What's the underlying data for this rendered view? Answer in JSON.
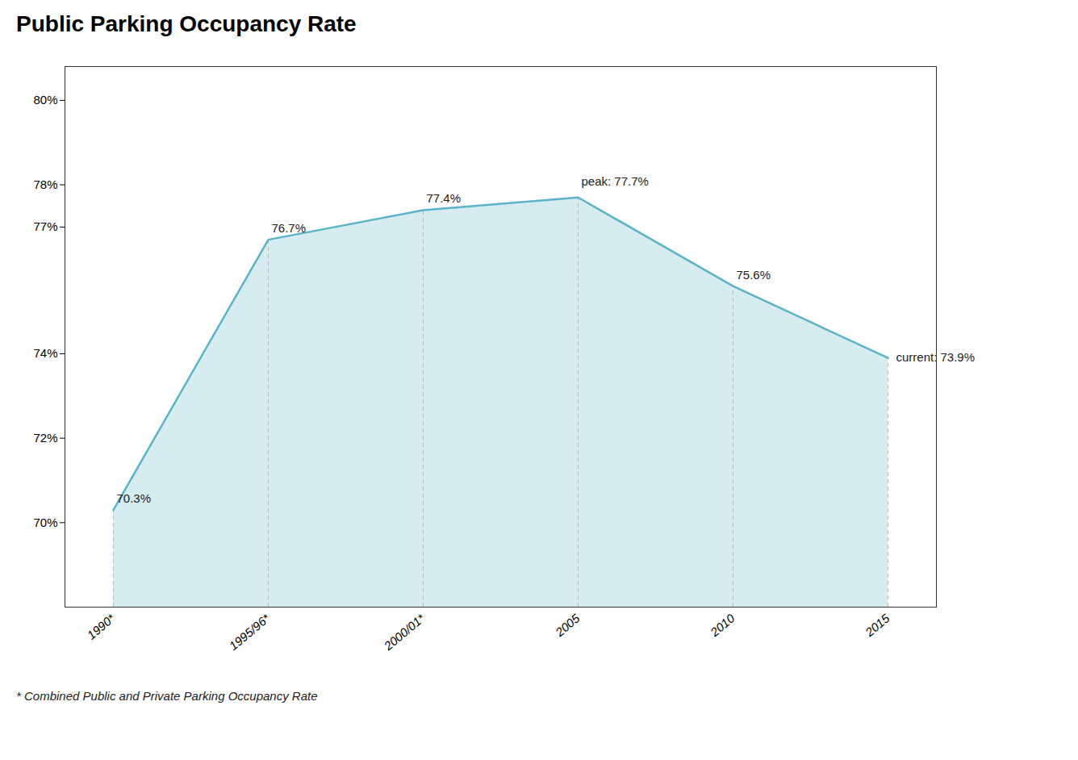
{
  "chart_data": {
    "type": "area",
    "title": "Public Parking Occupancy Rate",
    "categories": [
      "1990*",
      "1995/96*",
      "2000/01*",
      "2005",
      "2010",
      "2015"
    ],
    "values": [
      70.3,
      76.7,
      77.4,
      77.7,
      75.6,
      73.9
    ],
    "value_labels": [
      "70.3%",
      "76.7%",
      "77.4%",
      null,
      "75.6%",
      null
    ],
    "data_labels": true,
    "color": "#5ab4c8",
    "ylim": [
      68.0,
      80.8
    ],
    "yticks": [
      {
        "value": 70,
        "label": "70%"
      },
      {
        "value": 72,
        "label": "72%"
      },
      {
        "value": 74,
        "label": "74%"
      },
      {
        "value": 77,
        "label": "77%"
      },
      {
        "value": 78,
        "label": "78%"
      },
      {
        "value": 80,
        "label": "80%"
      }
    ],
    "annotations": [
      {
        "text": "peak: 77.7%",
        "x": "2005",
        "y": 77.7
      },
      {
        "text": "current: 73.9%",
        "x": "2015",
        "y": 73.9
      }
    ],
    "footnote": "* Combined Public and Private Parking Occupancy Rate",
    "grid": false
  }
}
